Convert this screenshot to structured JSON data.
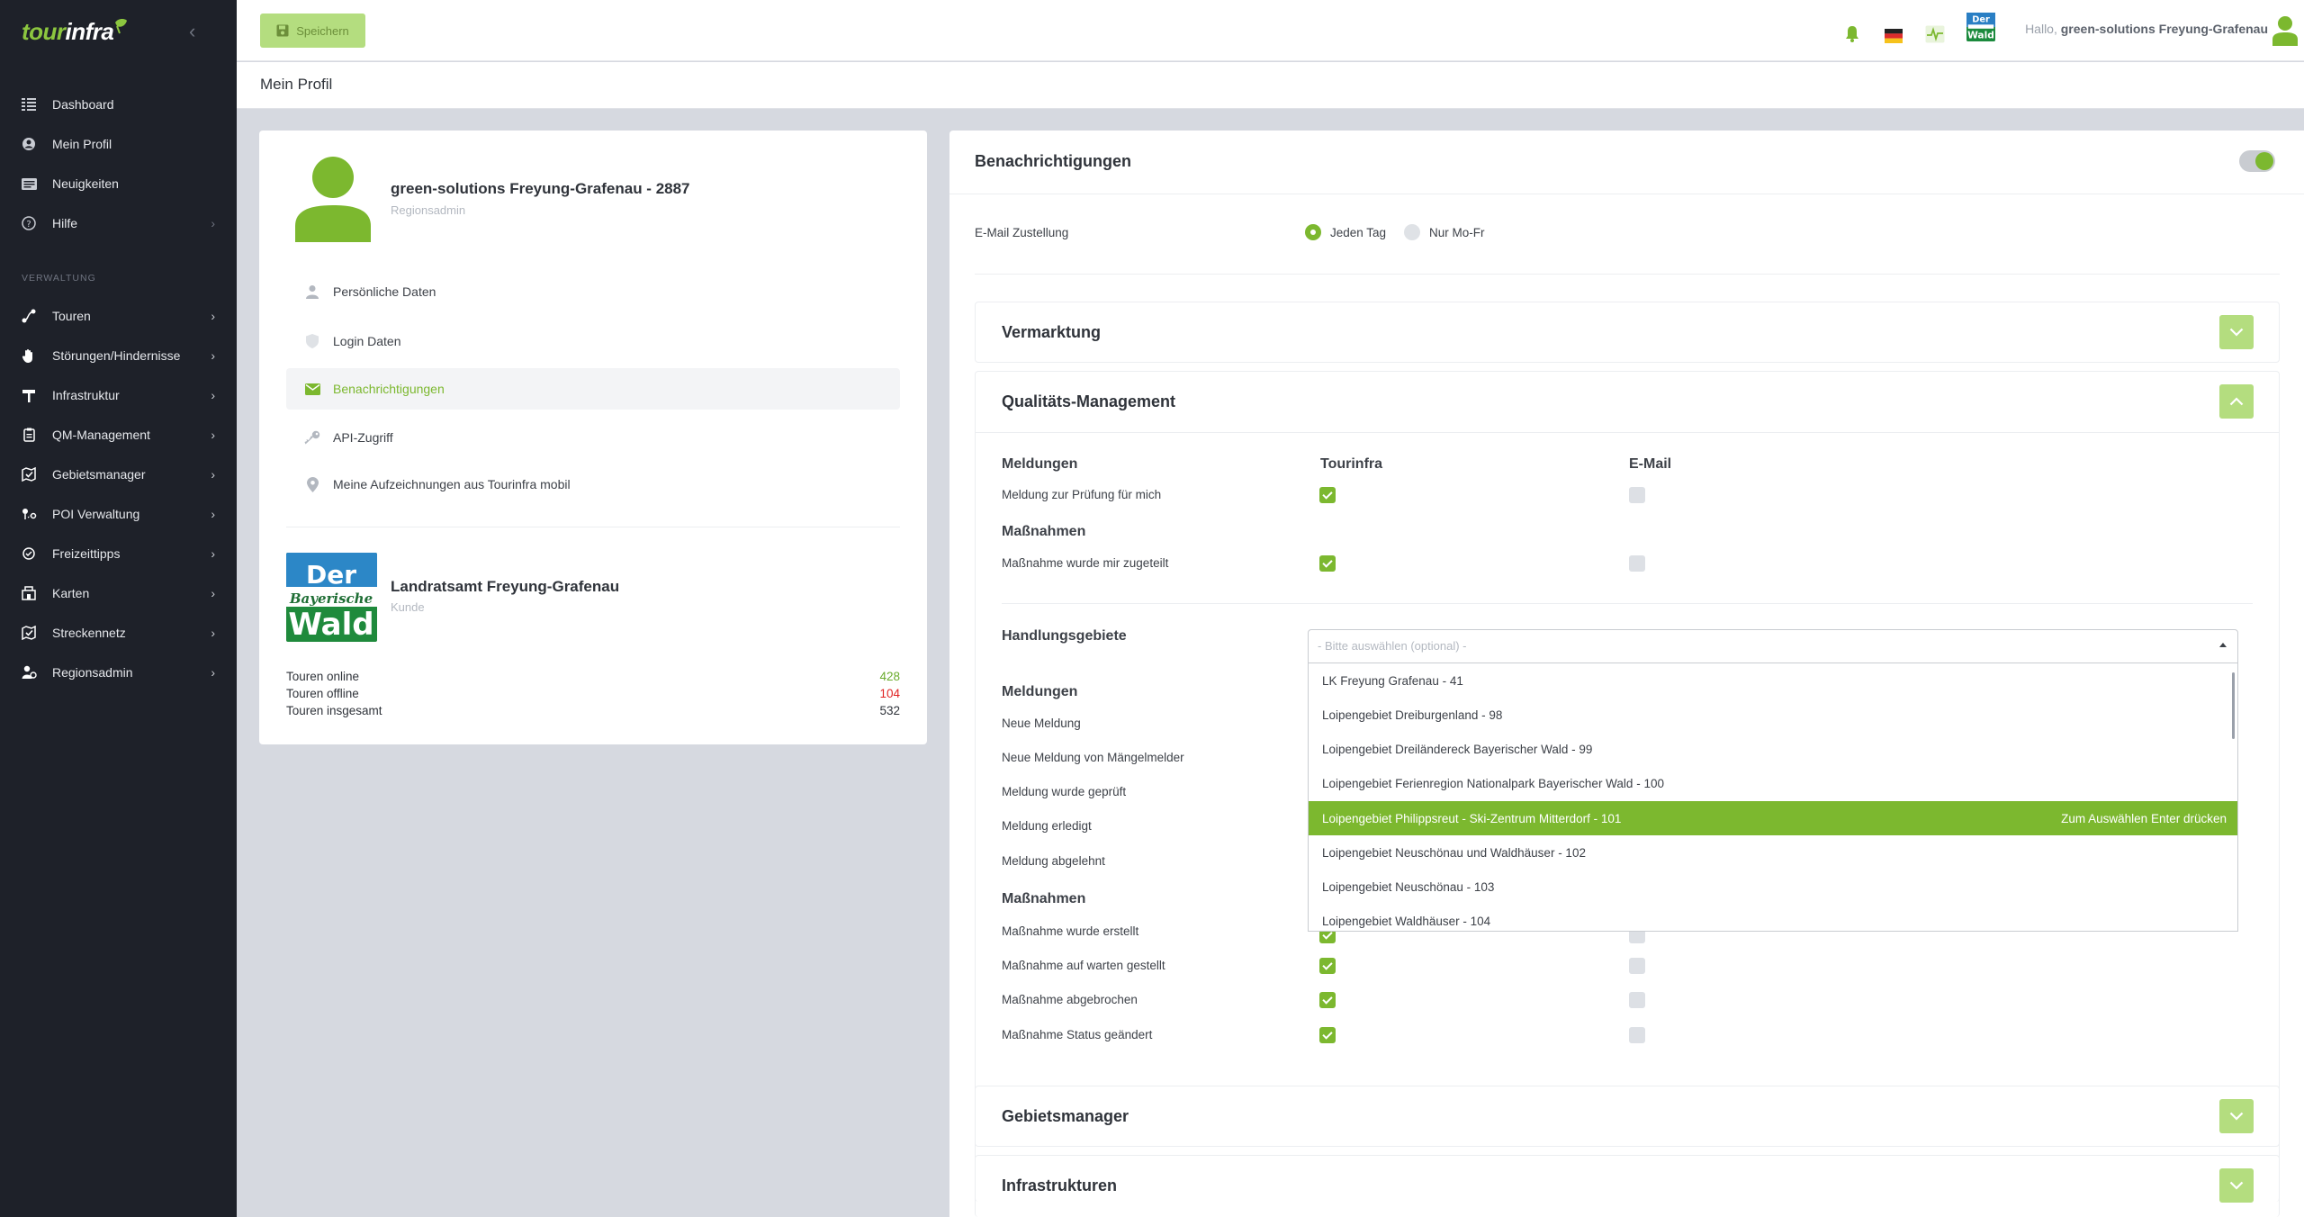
{
  "brand": {
    "part1": "tour",
    "part2": "infra"
  },
  "sidebar": {
    "section_label": "VERWALTUNG",
    "items": [
      {
        "label": "Dashboard",
        "icon": "dashboard-icon"
      },
      {
        "label": "Mein Profil",
        "icon": "user-circle-icon"
      },
      {
        "label": "Neuigkeiten",
        "icon": "news-icon"
      },
      {
        "label": "Hilfe",
        "icon": "help-icon"
      },
      {
        "label": "Touren",
        "icon": "route-icon"
      },
      {
        "label": "Störungen/Hindernisse",
        "icon": "hand-stop-icon"
      },
      {
        "label": "Infrastruktur",
        "icon": "signpost-icon"
      },
      {
        "label": "QM-Management",
        "icon": "clipboard-icon"
      },
      {
        "label": "Gebietsmanager",
        "icon": "map-check-icon"
      },
      {
        "label": "POI Verwaltung",
        "icon": "poi-icon"
      },
      {
        "label": "Freizeittipps",
        "icon": "tips-icon"
      },
      {
        "label": "Karten",
        "icon": "map-icon"
      },
      {
        "label": "Streckennetz",
        "icon": "network-icon"
      },
      {
        "label": "Regionsadmin",
        "icon": "admin-icon"
      }
    ]
  },
  "topbar": {
    "save_label": "Speichern",
    "hello_prefix": "Hallo,",
    "hello_user": "green-solutions Freyung-Grafenau"
  },
  "page": {
    "title": "Mein Profil"
  },
  "profile": {
    "name": "green-solutions Freyung-Grafenau - 2887",
    "role": "Regionsadmin",
    "menu": [
      {
        "label": "Persönliche Daten"
      },
      {
        "label": "Login Daten"
      },
      {
        "label": "Benachrichtigungen"
      },
      {
        "label": "API-Zugriff"
      },
      {
        "label": "Meine Aufzeichnungen aus Tourinfra mobil"
      }
    ],
    "customer": {
      "name": "Landratsamt Freyung-Grafenau",
      "role": "Kunde",
      "logo_line1": "Der",
      "logo_line2": "Bayerische",
      "logo_line3": "Wald"
    },
    "stats": [
      {
        "label": "Touren online",
        "value": "428",
        "color": "#6aab2d"
      },
      {
        "label": "Touren offline",
        "value": "104",
        "color": "#e02424"
      },
      {
        "label": "Touren insgesamt",
        "value": "532",
        "color": "#2f333a"
      }
    ]
  },
  "notifications": {
    "title": "Benachrichtigungen",
    "email_label": "E-Mail Zustellung",
    "radio_daily": "Jeden Tag",
    "radio_weekdays": "Nur Mo-Fr",
    "vermarktung": "Vermarktung",
    "qm": {
      "title": "Qualitäts-Management",
      "col1": "Meldungen",
      "col2": "Tourinfra",
      "col3": "E-Mail",
      "row1": "Meldung zur Prüfung für mich",
      "section2": "Maßnahmen",
      "row2": "Maßnahme wurde mir zugeteilt",
      "handlung_label": "Handlungsgebiete",
      "select_placeholder": "- Bitte auswählen (optional) -",
      "meldungen2": "Meldungen",
      "rows_meld": [
        "Neue Meldung",
        "Neue Meldung von Mängelmelder",
        "Meldung wurde geprüft",
        "Meldung erledigt",
        "Meldung abgelehnt"
      ],
      "massnahmen2": "Maßnahmen",
      "rows_mass": [
        "Maßnahme wurde erstellt",
        "Maßnahme auf warten gestellt",
        "Maßnahme abgebrochen",
        "Maßnahme Status geändert"
      ]
    },
    "dropdown_options": [
      "LK Freyung Grafenau - 41",
      "Loipengebiet Dreiburgenland - 98",
      "Loipengebiet Dreiländereck Bayerischer Wald - 99",
      "Loipengebiet Ferienregion Nationalpark Bayerischer Wald - 100",
      "Loipengebiet Philippsreut - Ski-Zentrum Mitterdorf - 101",
      "Loipengebiet Neuschönau und Waldhäuser - 102",
      "Loipengebiet Neuschönau - 103",
      "Loipengebiet Waldhäuser - 104"
    ],
    "dropdown_hint": "Zum Auswählen Enter drücken",
    "gebietsmanager": "Gebietsmanager",
    "infrastrukturen": "Infrastrukturen"
  },
  "colors": {
    "accent": "#7cb82f",
    "accent_light": "#b4dd7f",
    "sidebar_bg": "#1e2129"
  }
}
